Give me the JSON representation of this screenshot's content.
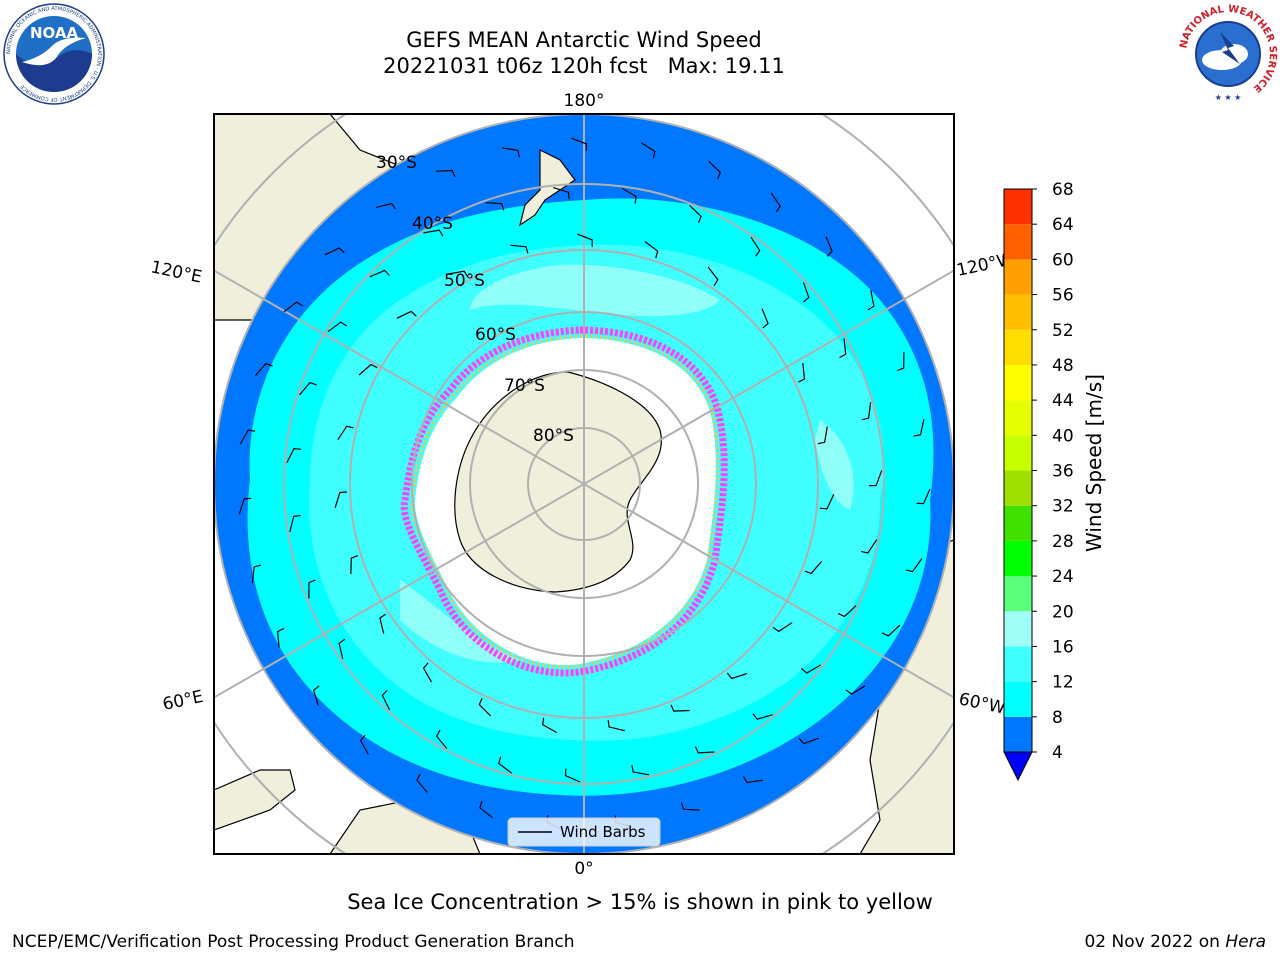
{
  "header": {
    "title_line1": "GEFS MEAN Antarctic Wind Speed",
    "title_line2": "20221031 t06z 120h fcst   Max: 19.11"
  },
  "logos": {
    "noaa_text": "NOAA",
    "noaa_ring": "NATIONAL OCEANIC AND ATMOSPHERIC ADMINISTRATION · U.S. DEPARTMENT OF COMMERCE",
    "nws_ring": "NATIONAL WEATHER SERVICE"
  },
  "map": {
    "longitude_labels": {
      "top": "180°",
      "bottom": "0°",
      "upper_left": "120°E",
      "upper_right": "120°W",
      "lower_left": "60°E",
      "lower_right": "60°W"
    },
    "latitude_labels": [
      "30°S",
      "40°S",
      "50°S",
      "60°S",
      "70°S",
      "80°S"
    ],
    "legend_label": "Wind Barbs",
    "colors": {
      "land": "#efefdc",
      "ocean_4_8": "#0077ff",
      "ocean_8_12": "#00ffff",
      "ocean_12_16": "#40ffff",
      "ocean_16_20": "#9ffff6",
      "sea_ice_pink": "#ff40ff",
      "sea_ice_yellow": "#ffbf40",
      "grid": "#b0b0b0"
    }
  },
  "colorbar": {
    "label": "Wind Speed [m/s]",
    "ticks": [
      "4",
      "8",
      "12",
      "16",
      "20",
      "24",
      "28",
      "32",
      "36",
      "40",
      "44",
      "48",
      "52",
      "56",
      "60",
      "64",
      "68"
    ],
    "colors": [
      "#0077ff",
      "#00ffff",
      "#40ffff",
      "#9ffff6",
      "#5cff7a",
      "#00ff00",
      "#40e000",
      "#9fe000",
      "#c8ff00",
      "#e6ff00",
      "#ffff00",
      "#ffdf00",
      "#ffbf00",
      "#ff9f00",
      "#ff6000",
      "#ff3000"
    ],
    "over_color": "#ff0000",
    "under_color": "#0000ff"
  },
  "caption": "Sea Ice Concentration > 15% is shown in pink to yellow",
  "footer": {
    "left": "NCEP/EMC/Verification Post Processing Product Generation Branch",
    "date": "02 Nov 2022 on ",
    "system": "Hera"
  }
}
